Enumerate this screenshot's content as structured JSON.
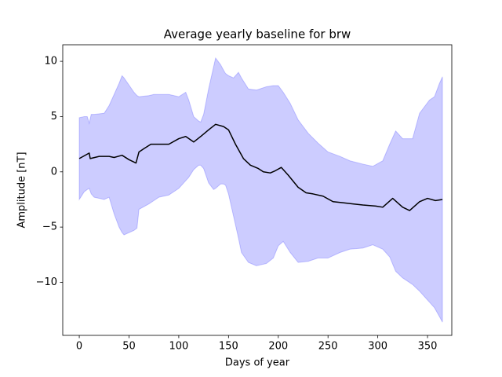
{
  "chart_data": {
    "type": "line",
    "title": "Average yearly baseline for brw",
    "xlabel": "Days of year",
    "ylabel": "Amplitude [nT]",
    "xlim": [
      -16.6,
      374.4
    ],
    "ylim": [
      -14.8,
      11.5
    ],
    "xticks": [
      0,
      50,
      100,
      150,
      200,
      250,
      300,
      350
    ],
    "yticks": [
      {
        "value": -10,
        "label": "−10"
      },
      {
        "value": -5,
        "label": "−5"
      },
      0,
      5,
      10
    ],
    "grid": false,
    "band": {
      "color": "#0000ff",
      "x": [
        0,
        5,
        8,
        10,
        12,
        15,
        25,
        30,
        35,
        40,
        43,
        45,
        55,
        58,
        60,
        70,
        75,
        80,
        90,
        100,
        107,
        110,
        115,
        120,
        122,
        125,
        130,
        135,
        137,
        142,
        145,
        147,
        150,
        155,
        160,
        163,
        170,
        178,
        188,
        195,
        200,
        205,
        212,
        220,
        230,
        240,
        250,
        262,
        272,
        285,
        295,
        305,
        312,
        318,
        325,
        335,
        342,
        352,
        357,
        362,
        365
      ],
      "upper": [
        4.9,
        5.0,
        5.0,
        4.4,
        5.2,
        5.2,
        5.3,
        6.0,
        7.0,
        8.0,
        8.7,
        8.5,
        7.2,
        6.9,
        6.8,
        6.9,
        7.0,
        7.0,
        7.0,
        6.8,
        7.2,
        6.5,
        5.0,
        4.6,
        4.5,
        5.2,
        7.5,
        9.5,
        10.3,
        9.7,
        9.2,
        8.9,
        8.7,
        8.5,
        9.0,
        8.5,
        7.5,
        7.4,
        7.7,
        7.8,
        7.8,
        7.2,
        6.2,
        4.7,
        3.5,
        2.6,
        1.8,
        1.4,
        1.0,
        0.7,
        0.5,
        1.0,
        2.5,
        3.7,
        3.0,
        3.0,
        5.3,
        6.5,
        6.8,
        8.0,
        8.6
      ],
      "lower": [
        -2.5,
        -1.8,
        -1.6,
        -1.5,
        -2.0,
        -2.3,
        -2.5,
        -2.3,
        -3.8,
        -5.0,
        -5.5,
        -5.7,
        -5.3,
        -5.1,
        -3.4,
        -2.9,
        -2.6,
        -2.3,
        -2.1,
        -1.5,
        -0.8,
        -0.5,
        0.2,
        0.6,
        0.6,
        0.3,
        -1.0,
        -1.6,
        -1.5,
        -1.1,
        -1.1,
        -1.2,
        -2.0,
        -4.0,
        -6.0,
        -7.3,
        -8.2,
        -8.5,
        -8.3,
        -7.8,
        -6.7,
        -6.3,
        -7.3,
        -8.2,
        -8.1,
        -7.8,
        -7.8,
        -7.3,
        -7.0,
        -6.9,
        -6.6,
        -7.0,
        -7.7,
        -9.0,
        -9.6,
        -10.2,
        -10.8,
        -11.8,
        -12.3,
        -13.1,
        -13.6
      ]
    },
    "series": [
      {
        "color": "#000000",
        "x": [
          0,
          10,
          11,
          20,
          30,
          35,
          43,
          50,
          57,
          60,
          65,
          72,
          80,
          90,
          100,
          107,
          115,
          122,
          130,
          137,
          145,
          150,
          157,
          165,
          172,
          180,
          185,
          192,
          197,
          203,
          210,
          220,
          228,
          235,
          245,
          255,
          265,
          275,
          285,
          298,
          305,
          315,
          325,
          332,
          342,
          350,
          358,
          365
        ],
        "values": [
          1.2,
          1.7,
          1.2,
          1.4,
          1.4,
          1.3,
          1.5,
          1.1,
          0.8,
          1.8,
          2.1,
          2.5,
          2.5,
          2.5,
          3.0,
          3.2,
          2.7,
          3.2,
          3.8,
          4.3,
          4.1,
          3.8,
          2.5,
          1.2,
          0.6,
          0.3,
          0.0,
          -0.1,
          0.1,
          0.4,
          -0.3,
          -1.4,
          -1.9,
          -2.0,
          -2.2,
          -2.7,
          -2.8,
          -2.9,
          -3.0,
          -3.1,
          -3.2,
          -2.4,
          -3.2,
          -3.5,
          -2.7,
          -2.4,
          -2.6,
          -2.5
        ]
      }
    ]
  }
}
